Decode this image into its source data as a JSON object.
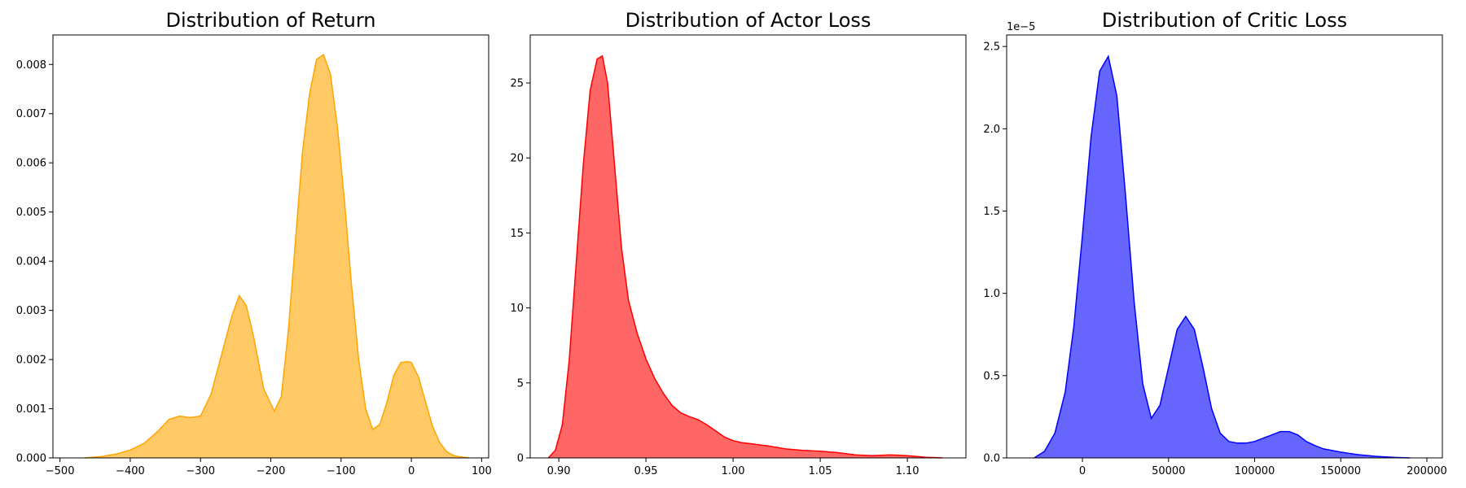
{
  "chart_data": [
    {
      "type": "area",
      "title": "Distribution of Return",
      "xlabel": "",
      "ylabel": "",
      "xlim": [
        -510,
        110
      ],
      "ylim": [
        0,
        0.0086
      ],
      "xticks": [
        -500,
        -400,
        -300,
        -200,
        -100,
        0,
        100
      ],
      "xtick_labels": [
        "−500",
        "−400",
        "−300",
        "−200",
        "−100",
        "0",
        "100"
      ],
      "yticks": [
        0,
        0.001,
        0.002,
        0.003,
        0.004,
        0.005,
        0.006,
        0.007,
        0.008
      ],
      "ytick_labels": [
        "0.000",
        "0.001",
        "0.002",
        "0.003",
        "0.004",
        "0.005",
        "0.006",
        "0.007",
        "0.008"
      ],
      "grid": false,
      "color": "#ffa500",
      "fill_opacity": 0.6,
      "x": [
        -465,
        -440,
        -420,
        -400,
        -380,
        -360,
        -345,
        -330,
        -315,
        -300,
        -285,
        -270,
        -255,
        -245,
        -235,
        -225,
        -210,
        -195,
        -185,
        -175,
        -165,
        -155,
        -145,
        -135,
        -125,
        -115,
        -105,
        -95,
        -85,
        -75,
        -65,
        -55,
        -45,
        -35,
        -25,
        -15,
        -5,
        0,
        10,
        20,
        30,
        40,
        50,
        60,
        70,
        82
      ],
      "y": [
        0,
        3e-05,
        8e-05,
        0.00016,
        0.0003,
        0.00055,
        0.00078,
        0.00085,
        0.00082,
        0.00085,
        0.0013,
        0.0021,
        0.0029,
        0.0033,
        0.0031,
        0.0025,
        0.0014,
        0.00095,
        0.00125,
        0.0026,
        0.0044,
        0.0062,
        0.0074,
        0.0081,
        0.0082,
        0.0078,
        0.0067,
        0.0052,
        0.0035,
        0.002,
        0.001,
        0.00058,
        0.00068,
        0.00112,
        0.00168,
        0.00194,
        0.00196,
        0.00194,
        0.00165,
        0.00115,
        0.00065,
        0.00032,
        0.00013,
        5e-05,
        2e-05,
        0
      ]
    },
    {
      "type": "area",
      "title": "Distribution of Actor Loss",
      "xlabel": "",
      "ylabel": "",
      "xlim": [
        0.8836,
        1.1336
      ],
      "ylim": [
        0,
        28.2
      ],
      "xticks": [
        0.9,
        0.95,
        1.0,
        1.05,
        1.1
      ],
      "xtick_labels": [
        "0.90",
        "0.95",
        "1.00",
        "1.05",
        "1.10"
      ],
      "yticks": [
        0,
        5,
        10,
        15,
        20,
        25
      ],
      "ytick_labels": [
        "0",
        "5",
        "10",
        "15",
        "20",
        "25"
      ],
      "grid": false,
      "color": "#ff0000",
      "fill_opacity": 0.6,
      "x": [
        0.894,
        0.898,
        0.902,
        0.906,
        0.91,
        0.914,
        0.918,
        0.922,
        0.925,
        0.928,
        0.932,
        0.936,
        0.94,
        0.945,
        0.95,
        0.955,
        0.96,
        0.965,
        0.97,
        0.975,
        0.98,
        0.985,
        0.99,
        0.995,
        1.0,
        1.005,
        1.01,
        1.02,
        1.03,
        1.04,
        1.05,
        1.06,
        1.07,
        1.08,
        1.09,
        1.1,
        1.11,
        1.12
      ],
      "y": [
        0,
        0.5,
        2.2,
        6.5,
        13,
        19.5,
        24.5,
        26.6,
        26.8,
        25,
        19.5,
        14,
        10.5,
        8.3,
        6.6,
        5.3,
        4.3,
        3.5,
        3.0,
        2.75,
        2.55,
        2.2,
        1.8,
        1.4,
        1.15,
        1.02,
        0.95,
        0.8,
        0.6,
        0.5,
        0.45,
        0.35,
        0.2,
        0.15,
        0.2,
        0.15,
        0.05,
        0
      ]
    },
    {
      "type": "area",
      "title": "Distribution of Critic Loss",
      "xlabel": "",
      "ylabel": "",
      "offset_text": "1e−5",
      "scale": 1e-05,
      "xlim": [
        -44000,
        209000
      ],
      "ylim": [
        0,
        2.57
      ],
      "xticks": [
        0,
        50000,
        100000,
        150000,
        200000
      ],
      "xtick_labels": [
        "0",
        "50000",
        "100000",
        "150000",
        "200000"
      ],
      "yticks": [
        0,
        0.5,
        1.0,
        1.5,
        2.0,
        2.5
      ],
      "ytick_labels": [
        "0.0",
        "0.5",
        "1.0",
        "1.5",
        "2.0",
        "2.5"
      ],
      "grid": false,
      "color": "#0000ff",
      "fill_opacity": 0.6,
      "x": [
        -28000,
        -22000,
        -16000,
        -10000,
        -5000,
        0,
        5000,
        10000,
        15000,
        20000,
        25000,
        30000,
        35000,
        40000,
        45000,
        50000,
        55000,
        60000,
        65000,
        70000,
        75000,
        80000,
        85000,
        90000,
        95000,
        100000,
        105000,
        110000,
        115000,
        120000,
        125000,
        130000,
        135000,
        140000,
        150000,
        160000,
        170000,
        180000,
        190000
      ],
      "y": [
        0,
        0.04,
        0.15,
        0.4,
        0.8,
        1.35,
        1.95,
        2.35,
        2.44,
        2.2,
        1.6,
        0.95,
        0.45,
        0.24,
        0.32,
        0.55,
        0.78,
        0.86,
        0.78,
        0.55,
        0.3,
        0.15,
        0.1,
        0.09,
        0.09,
        0.1,
        0.12,
        0.14,
        0.16,
        0.16,
        0.14,
        0.1,
        0.075,
        0.055,
        0.035,
        0.02,
        0.01,
        0.004,
        0
      ]
    }
  ]
}
